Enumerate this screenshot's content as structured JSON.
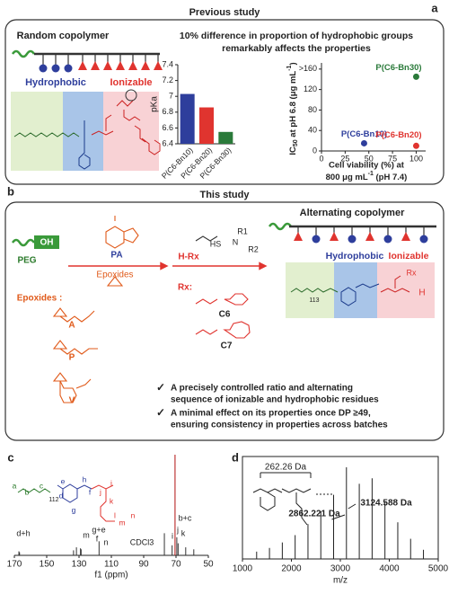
{
  "panel_a": {
    "label": "a",
    "heading": "Previous study",
    "left_title": "Random copolymer",
    "hydrophobic": "Hydrophobic",
    "ionizable": "Ionizable",
    "statement": [
      "10% difference in proportion of hydrophobic groups",
      "remarkably affects the properties"
    ],
    "pka_chart": {
      "type": "bar",
      "y_label": "pKa",
      "categories": [
        "P(C6-Bn10)",
        "P(C6-Bn20)",
        "P(C6-Bn30)"
      ],
      "values": [
        7.03,
        6.86,
        6.55
      ],
      "colors": [
        "#2e3e9c",
        "#e0342f",
        "#2a7a3a"
      ],
      "ylim": [
        6.4,
        7.4
      ],
      "yticks": [
        6.4,
        6.6,
        6.8,
        7.0,
        7.2,
        7.4
      ]
    },
    "ic50_chart": {
      "type": "scatter",
      "y_label": [
        "IC",
        "50",
        " at pH 6.8 (μg mL",
        "-1",
        ")"
      ],
      "x_label": [
        "Cell viability (%) at",
        "800 μg mL",
        "-1",
        " (pH 7.4)"
      ],
      "point_labels": [
        "P(C6-Bn10)",
        "P(C6-Bn20)",
        "P(C6-Bn30)"
      ],
      "x": [
        45,
        100,
        100
      ],
      "values": [
        15,
        10,
        145
      ],
      "colors": [
        "#2e3e9c",
        "#e0342f",
        "#2a7a3a"
      ],
      "xlim": [
        0,
        110
      ],
      "xticks": [
        0,
        25,
        50,
        75,
        100
      ],
      "ylim": [
        0,
        165
      ],
      "yticks": [
        0,
        40,
        80,
        120,
        {
          "value": 160,
          "label": ">160"
        }
      ]
    }
  },
  "panel_b": {
    "label": "b",
    "heading": "This study",
    "peg": "PEG",
    "oh": "OH",
    "pa": "PA",
    "epoxides": "Epoxides",
    "epoxides_list": "Epoxides :",
    "epoxide_names": [
      "A",
      "P",
      "V"
    ],
    "thiol": "H-Rx",
    "thiol_parts": [
      "HS",
      "N",
      "R1",
      "R2"
    ],
    "rx": "Rx:",
    "rx_names": [
      "C6",
      "C7"
    ],
    "product_title": "Alternating copolymer",
    "hydrophobic": "Hydrophobic",
    "ionizable": "Ionizable",
    "product_parts": [
      "113",
      "Rx",
      "H"
    ],
    "checks": [
      [
        "A precisely controlled ratio and alternating",
        "sequence of ionizable and hydrophobic residues"
      ],
      [
        "A minimal effect on its properties once DP ≥49,",
        "ensuring consistency in properties across batches"
      ]
    ]
  },
  "panel_c": {
    "label": "c",
    "type": "spectrum",
    "x_label": "f1 (ppm)",
    "xlim": [
      170,
      50
    ],
    "xticks": [
      170,
      150,
      130,
      110,
      90,
      70,
      50
    ],
    "peak_ppm": [
      167.2,
      166.8,
      133.4,
      131.6,
      129.1,
      128.7,
      117.6,
      77.2,
      72.4,
      70.6,
      69.5,
      68.7,
      64.0,
      59.0
    ],
    "peak_intensity": [
      4,
      3,
      5,
      8,
      7,
      6,
      14,
      22,
      10,
      100,
      18,
      12,
      8,
      6
    ],
    "peak_labels": [
      "d+h",
      "m",
      "g+e",
      "f",
      "n",
      "CDCl3",
      "b+c",
      "j",
      "k",
      "i"
    ],
    "structure_labels": [
      "a",
      "b",
      "c",
      "d",
      "e",
      "f",
      "g",
      "h",
      "i",
      "j",
      "k",
      "l",
      "m",
      "n"
    ],
    "repeat": "112"
  },
  "panel_d": {
    "label": "d",
    "type": "spectrum",
    "x_label": "m/z",
    "xlim": [
      1000,
      5000
    ],
    "xticks": [
      1000,
      2000,
      3000,
      4000,
      5000
    ],
    "ylim": [
      0,
      100
    ],
    "peak_mz": [
      1289.66,
      1551.92,
      1814.18,
      2076.44,
      2338.7,
      2600.96,
      2862.221,
      3124.588,
      3386.85,
      3649.11,
      3911.37,
      4173.63,
      4435.89,
      4698.15
    ],
    "peak_intensity": [
      8,
      12,
      18,
      26,
      38,
      52,
      70,
      100,
      82,
      88,
      62,
      40,
      22,
      10
    ],
    "annotations": [
      "262.26 Da",
      "3124.588 Da",
      "2862.221 Da"
    ]
  }
}
